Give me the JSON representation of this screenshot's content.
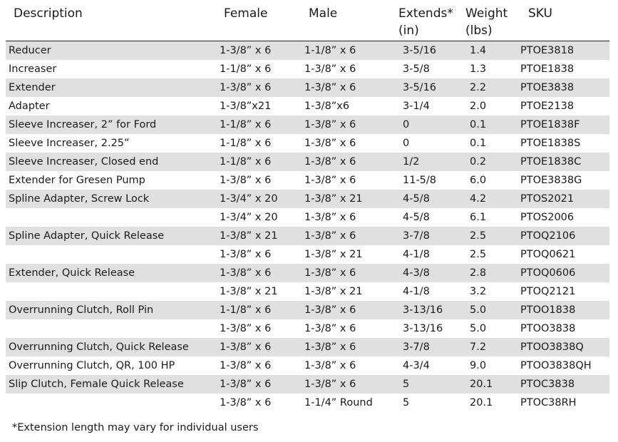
{
  "header": {
    "description": "Description",
    "female": "Female",
    "male": "Male",
    "extends": "Extends*\n(in)",
    "weight": "Weight\n(lbs)",
    "sku": "SKU"
  },
  "rows": [
    {
      "description": "Reducer",
      "female": "1-3/8” x 6",
      "male": "1-1/8” x 6",
      "extends": "3-5/16",
      "weight": "1.4",
      "sku": "PTOE3818"
    },
    {
      "description": "Increaser",
      "female": "1-1/8” x 6",
      "male": "1-3/8” x 6",
      "extends": "3-5/8",
      "weight": "1.3",
      "sku": "PTOE1838"
    },
    {
      "description": "Extender",
      "female": "1-3/8” x 6",
      "male": "1-3/8” x 6",
      "extends": "3-5/16",
      "weight": "2.2",
      "sku": "PTOE3838"
    },
    {
      "description": "Adapter",
      "female": "1-3/8”x21",
      "male": "1-3/8”x6",
      "extends": "3-1/4",
      "weight": "2.0",
      "sku": "PTOE2138"
    },
    {
      "description": "Sleeve Increaser, 2” for Ford",
      "female": "1-1/8” x 6",
      "male": "1-3/8” x 6",
      "extends": "0",
      "weight": "0.1",
      "sku": "PTOE1838F"
    },
    {
      "description": "Sleeve Increaser, 2.25”",
      "female": "1-1/8” x 6",
      "male": "1-3/8” x 6",
      "extends": "0",
      "weight": "0.1",
      "sku": "PTOE1838S"
    },
    {
      "description": "Sleeve Increaser, Closed end",
      "female": "1-1/8” x 6",
      "male": "1-3/8” x 6",
      "extends": "1/2",
      "weight": "0.2",
      "sku": "PTOE1838C"
    },
    {
      "description": "Extender for Gresen Pump",
      "female": "1-3/8” x 6",
      "male": "1-3/8” x 6",
      "extends": "11-5/8",
      "weight": "6.0",
      "sku": "PTOE3838G"
    },
    {
      "description": "Spline Adapter, Screw Lock",
      "female": "1-3/4” x 20",
      "male": "1-3/8” x 21",
      "extends": "4-5/8",
      "weight": "4.2",
      "sku": "PTOS2021"
    },
    {
      "description": "",
      "female": "1-3/4” x 20",
      "male": "1-3/8” x 6",
      "extends": "4-5/8",
      "weight": "6.1",
      "sku": "PTOS2006"
    },
    {
      "description": "Spline Adapter, Quick Release",
      "female": "1-3/8” x 21",
      "male": "1-3/8” x 6",
      "extends": "3-7/8",
      "weight": "2.5",
      "sku": "PTOQ2106"
    },
    {
      "description": "",
      "female": "1-3/8” x 6",
      "male": "1-3/8” x 21",
      "extends": "4-1/8",
      "weight": "2.5",
      "sku": "PTOQ0621"
    },
    {
      "description": "Extender, Quick Release",
      "female": "1-3/8” x 6",
      "male": "1-3/8” x 6",
      "extends": "4-3/8",
      "weight": "2.8",
      "sku": "PTOQ0606"
    },
    {
      "description": "",
      "female": "1-3/8” x 21",
      "male": "1-3/8” x 21",
      "extends": "4-1/8",
      "weight": "3.2",
      "sku": "PTOQ2121"
    },
    {
      "description": "Overrunning Clutch, Roll Pin",
      "female": "1-1/8” x 6",
      "male": "1-3/8” x 6",
      "extends": "3-13/16",
      "weight": "5.0",
      "sku": "PTOO1838"
    },
    {
      "description": "",
      "female": "1-3/8” x 6",
      "male": "1-3/8” x 6",
      "extends": "3-13/16",
      "weight": "5.0",
      "sku": "PTOO3838"
    },
    {
      "description": "Overrunning Clutch, Quick Release",
      "female": "1-3/8” x 6",
      "male": "1-3/8” x 6",
      "extends": "3-7/8",
      "weight": "7.2",
      "sku": "PTOO3838Q"
    },
    {
      "description": "Overrunning Clutch, QR, 100 HP",
      "female": "1-3/8” x 6",
      "male": "1-3/8” x 6",
      "extends": "4-3/4",
      "weight": "9.0",
      "sku": "PTOO3838QH"
    },
    {
      "description": "Slip Clutch, Female Quick Release",
      "female": "1-3/8” x 6",
      "male": "1-3/8” x 6",
      "extends": "5",
      "weight": "20.1",
      "sku": "PTOC3838"
    },
    {
      "description": "",
      "female": "1-3/8” x 6",
      "male": "1-1/4” Round",
      "extends": "5",
      "weight": "20.1",
      "sku": "PTOC38RH"
    }
  ],
  "footnote": "*Extension length may vary for individual users",
  "colors": {
    "shade": "#e0e0e0",
    "text": "#1a1a1a"
  }
}
